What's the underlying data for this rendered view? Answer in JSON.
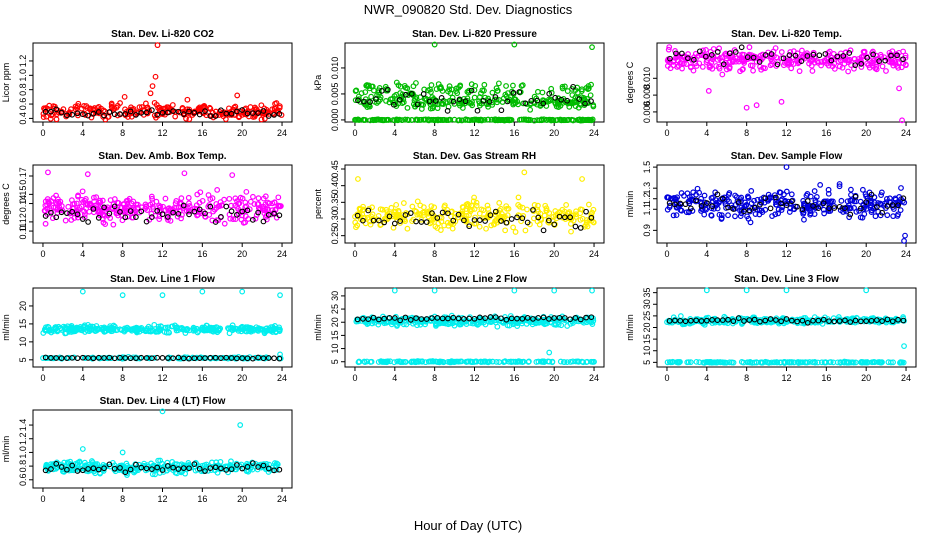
{
  "figure": {
    "title": "NWR_090820  Std. Dev. Diagnostics",
    "xlabel": "Hour of Day (UTC)"
  },
  "chart_data": [
    {
      "type": "scatter",
      "title": "Stan. Dev. Li-820 CO2",
      "ylabel": "Licor ppm",
      "xlim": [
        -1,
        25
      ],
      "ylim": [
        0.35,
        1.45
      ],
      "xticks": [
        0,
        4,
        8,
        12,
        16,
        20,
        24
      ],
      "yticks": [
        0.4,
        0.6,
        0.8,
        1.0,
        1.2
      ],
      "ytick_labels": [
        "0.4",
        "0.6",
        "0.8",
        "1.0",
        "1.2"
      ],
      "color": "#ff0000",
      "bands": [
        {
          "y": 0.5,
          "spread": 0.09,
          "count": 260
        }
      ],
      "highlights": [
        {
          "x": 11.3,
          "y": 0.98
        },
        {
          "x": 11.0,
          "y": 0.85
        },
        {
          "x": 11.5,
          "y": 1.42
        },
        {
          "x": 10.8,
          "y": 0.75
        },
        {
          "x": 8.2,
          "y": 0.7
        },
        {
          "x": 19.5,
          "y": 0.72
        },
        {
          "x": 14.5,
          "y": 0.66
        }
      ],
      "black": {
        "y": 0.47,
        "spread": 0.05,
        "count": 45
      }
    },
    {
      "type": "scatter",
      "title": "Stan. Dev. Li-820 Pressure",
      "ylabel": "kPa",
      "xlim": [
        -1,
        25
      ],
      "ylim": [
        -0.0004,
        0.0148
      ],
      "xticks": [
        0,
        4,
        8,
        12,
        16,
        20,
        24
      ],
      "yticks": [
        0.0,
        0.005,
        0.01
      ],
      "ytick_labels": [
        "0.000",
        "0.005",
        "0.010"
      ],
      "color": "#00bb00",
      "bands": [
        {
          "y": 0.0,
          "spread": 0.0001,
          "count": 200
        },
        {
          "y": 0.0035,
          "spread": 0.0012,
          "count": 220
        },
        {
          "y": 0.006,
          "spread": 0.0009,
          "count": 90
        }
      ],
      "highlights": [
        {
          "x": 8.0,
          "y": 0.0145
        },
        {
          "x": 16.0,
          "y": 0.0145
        },
        {
          "x": 23.8,
          "y": 0.014
        },
        {
          "x": 4.2,
          "y": 0.0072
        }
      ],
      "black": {
        "y": 0.004,
        "spread": 0.002,
        "count": 40
      }
    },
    {
      "type": "scatter",
      "title": "Stan. Dev. Li-820 Temp.",
      "ylabel": "degrees C",
      "xlim": [
        -1,
        25
      ],
      "ylim": [
        0.0048,
        0.0142
      ],
      "xticks": [
        0,
        4,
        8,
        12,
        16,
        20,
        24
      ],
      "yticks": [
        0.006,
        0.008,
        0.01
      ],
      "ytick_labels": [
        "0.006",
        "0.008",
        "0.010"
      ],
      "color": "#ff00ff",
      "bands": [
        {
          "y": 0.0122,
          "spread": 0.0012,
          "count": 320
        }
      ],
      "highlights": [
        {
          "x": 4.2,
          "y": 0.0085
        },
        {
          "x": 8.0,
          "y": 0.0065
        },
        {
          "x": 9.0,
          "y": 0.0068
        },
        {
          "x": 11.5,
          "y": 0.0072
        },
        {
          "x": 23.6,
          "y": 0.005
        },
        {
          "x": 23.3,
          "y": 0.0088
        }
      ],
      "black": {
        "y": 0.0125,
        "spread": 0.001,
        "count": 40
      }
    },
    {
      "type": "scatter",
      "title": "Stan. Dev. Amb. Box Temp.",
      "ylabel": "degrees C",
      "xlim": [
        -1,
        25
      ],
      "ylim": [
        0.097,
        0.182
      ],
      "xticks": [
        0,
        4,
        8,
        12,
        16,
        20,
        24
      ],
      "yticks": [
        0.11,
        0.12,
        0.14,
        0.15,
        0.17
      ],
      "ytick_labels": [
        "0.11",
        "0.12",
        "0.14",
        "0.15",
        "0.17"
      ],
      "color": "#ff00ff",
      "bands": [
        {
          "y": 0.135,
          "spread": 0.013,
          "count": 330
        }
      ],
      "highlights": [
        {
          "x": 0.5,
          "y": 0.174
        },
        {
          "x": 4.5,
          "y": 0.172
        },
        {
          "x": 14.2,
          "y": 0.173
        },
        {
          "x": 19.0,
          "y": 0.171
        }
      ],
      "black": {
        "y": 0.128,
        "spread": 0.01,
        "count": 45
      }
    },
    {
      "type": "scatter",
      "title": "Stan. Dev. Gas Stream RH",
      "ylabel": "percent",
      "xlim": [
        -1,
        25
      ],
      "ylim": [
        0.228,
        0.462
      ],
      "xticks": [
        0,
        4,
        8,
        12,
        16,
        20,
        24
      ],
      "yticks": [
        0.25,
        0.3,
        0.35,
        0.4,
        0.45
      ],
      "ytick_labels": [
        "0.25",
        "0.30",
        "0.35",
        "0.40",
        "0.45"
      ],
      "color": "#ffee00",
      "bands": [
        {
          "y": 0.31,
          "spread": 0.035,
          "count": 300
        }
      ],
      "highlights": [
        {
          "x": 17.0,
          "y": 0.44
        },
        {
          "x": 0.3,
          "y": 0.42
        },
        {
          "x": 22.8,
          "y": 0.42
        }
      ],
      "black": {
        "y": 0.3,
        "spread": 0.03,
        "count": 45
      }
    },
    {
      "type": "scatter",
      "title": "Stan. Dev. Sample Flow",
      "ylabel": "ml/min",
      "xlim": [
        -1,
        25
      ],
      "ylim": [
        0.78,
        1.52
      ],
      "xticks": [
        0,
        4,
        8,
        12,
        16,
        20,
        24
      ],
      "yticks": [
        0.9,
        1.1,
        1.2,
        1.3,
        1.5
      ],
      "ytick_labels": [
        "0.9",
        "1.1",
        "1.2",
        "1.3",
        "1.5"
      ],
      "color": "#0000dd",
      "bands": [
        {
          "y": 1.15,
          "spread": 0.12,
          "count": 320
        }
      ],
      "highlights": [
        {
          "x": 12.0,
          "y": 1.5
        },
        {
          "x": 23.8,
          "y": 0.8
        },
        {
          "x": 23.9,
          "y": 0.85
        }
      ],
      "black": {
        "y": 1.15,
        "spread": 0.1,
        "count": 45
      }
    },
    {
      "type": "scatter",
      "title": "Stan. Dev. Line 1 Flow",
      "ylabel": "ml/min",
      "xlim": [
        -1,
        25
      ],
      "ylim": [
        3,
        25
      ],
      "xticks": [
        0,
        4,
        8,
        12,
        16,
        20,
        24
      ],
      "yticks": [
        5,
        10,
        15,
        20
      ],
      "ytick_labels": [
        "5",
        "10",
        "15",
        "20"
      ],
      "color": "#00eeee",
      "bands": [
        {
          "y": 13.5,
          "spread": 0.9,
          "count": 330
        },
        {
          "y": 5.5,
          "spread": 0.2,
          "count": 120
        }
      ],
      "highlights": [
        {
          "x": 4.0,
          "y": 24
        },
        {
          "x": 8.0,
          "y": 23
        },
        {
          "x": 12.0,
          "y": 23
        },
        {
          "x": 16.0,
          "y": 24
        },
        {
          "x": 20.0,
          "y": 24
        },
        {
          "x": 23.8,
          "y": 23
        },
        {
          "x": 23.8,
          "y": 6.5
        }
      ],
      "black": {
        "y": 5.5,
        "spread": 0.2,
        "count": 45
      }
    },
    {
      "type": "scatter",
      "title": "Stan. Dev. Line 2 Flow",
      "ylabel": "ml/min",
      "xlim": [
        -1,
        25
      ],
      "ylim": [
        3,
        33
      ],
      "xticks": [
        0,
        4,
        8,
        12,
        16,
        20,
        24
      ],
      "yticks": [
        5,
        10,
        15,
        20,
        25,
        30
      ],
      "ytick_labels": [
        "5",
        "10",
        "15",
        "20",
        "25",
        "30"
      ],
      "color": "#00eeee",
      "bands": [
        {
          "y": 20.5,
          "spread": 1.5,
          "count": 320
        },
        {
          "y": 5.0,
          "spread": 0.2,
          "count": 160
        }
      ],
      "highlights": [
        {
          "x": 4.0,
          "y": 32
        },
        {
          "x": 8.0,
          "y": 32
        },
        {
          "x": 16.0,
          "y": 32
        },
        {
          "x": 20.0,
          "y": 32
        },
        {
          "x": 23.8,
          "y": 32
        },
        {
          "x": 19.5,
          "y": 8.5
        }
      ],
      "black": {
        "y": 21.5,
        "spread": 0.8,
        "count": 45
      }
    },
    {
      "type": "scatter",
      "title": "Stan. Dev. Line 3 Flow",
      "ylabel": "ml/min",
      "xlim": [
        -1,
        25
      ],
      "ylim": [
        3,
        37
      ],
      "xticks": [
        0,
        4,
        8,
        12,
        16,
        20,
        24
      ],
      "yticks": [
        5,
        10,
        15,
        20,
        25,
        30,
        35
      ],
      "ytick_labels": [
        "5",
        "10",
        "15",
        "20",
        "25",
        "30",
        "35"
      ],
      "color": "#00eeee",
      "bands": [
        {
          "y": 23.0,
          "spread": 1.2,
          "count": 320
        },
        {
          "y": 5.0,
          "spread": 0.2,
          "count": 160
        }
      ],
      "highlights": [
        {
          "x": 4.0,
          "y": 36
        },
        {
          "x": 8.0,
          "y": 36
        },
        {
          "x": 12.0,
          "y": 36
        },
        {
          "x": 20.0,
          "y": 36
        },
        {
          "x": 23.8,
          "y": 12
        }
      ],
      "black": {
        "y": 23.0,
        "spread": 0.8,
        "count": 45
      }
    },
    {
      "type": "scatter",
      "title": "Stan. Dev. Line 4 (LT) Flow",
      "ylabel": "ml/min",
      "xlim": [
        -1,
        25
      ],
      "ylim": [
        0.48,
        1.62
      ],
      "xticks": [
        0,
        4,
        8,
        12,
        16,
        20,
        24
      ],
      "yticks": [
        0.6,
        0.8,
        1.0,
        1.2,
        1.4
      ],
      "ytick_labels": [
        "0.6",
        "0.8",
        "1.0",
        "1.2",
        "1.4"
      ],
      "color": "#00eeee",
      "bands": [
        {
          "y": 0.78,
          "spread": 0.08,
          "count": 320
        }
      ],
      "highlights": [
        {
          "x": 12.0,
          "y": 1.6
        },
        {
          "x": 19.8,
          "y": 1.4
        },
        {
          "x": 4.0,
          "y": 1.05
        },
        {
          "x": 8.0,
          "y": 1.0
        }
      ],
      "black": {
        "y": 0.78,
        "spread": 0.07,
        "count": 45
      }
    }
  ]
}
